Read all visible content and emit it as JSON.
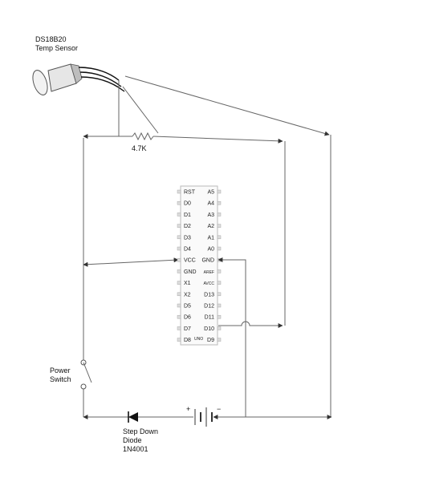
{
  "sensor": {
    "line1": "DS18B20",
    "line2": "Temp Sensor"
  },
  "resistor": {
    "value": "4.7K"
  },
  "power_switch": {
    "line1": "Power",
    "line2": "Switch"
  },
  "diode": {
    "line1": "Step Down",
    "line2": "Diode",
    "line3": "1N4001"
  },
  "battery": {
    "plus": "+",
    "minus": "−"
  },
  "chip": {
    "left_pins": [
      "RST",
      "D0",
      "D1",
      "D2",
      "D3",
      "D4",
      "VCC",
      "GND",
      "X1",
      "X2",
      "D5",
      "D6",
      "D7",
      "D8"
    ],
    "right_pins": [
      "A5",
      "A4",
      "A3",
      "A2",
      "A1",
      "A0",
      "GND",
      "AREF",
      "AVCC",
      "D13",
      "D12",
      "D11",
      "D10",
      "D9"
    ],
    "uno_mark": "UNO"
  }
}
